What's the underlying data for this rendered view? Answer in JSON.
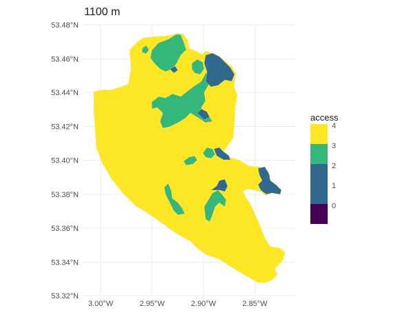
{
  "title": "1100 m",
  "colors": {
    "background": "#ffffff",
    "grid": "#ebebeb",
    "axis_text": "#4d4d4d",
    "title_text": "#1a1a1a",
    "boundary": "#f5e97a"
  },
  "axes": {
    "x_ticks": [
      "3.00°W",
      "2.95°W",
      "2.90°W",
      "2.85°W"
    ],
    "y_ticks": [
      "53.48°N",
      "53.46°N",
      "53.44°N",
      "53.42°N",
      "53.40°N",
      "53.38°N",
      "53.36°N",
      "53.34°N",
      "53.32°N"
    ]
  },
  "legend": {
    "title": "access",
    "placement": "right",
    "items": [
      {
        "label": "4",
        "color": "#fde725"
      },
      {
        "label": "3",
        "color": "#35b779"
      },
      {
        "label": "2",
        "color": "#31688e"
      },
      {
        "label": "1",
        "color": "#31688e"
      },
      {
        "label": "0",
        "color": "#440154"
      }
    ]
  },
  "chart_data": {
    "type": "choropleth",
    "variable": "access",
    "categories": [
      "0",
      "1",
      "2",
      "3",
      "4"
    ],
    "x_range_deg_w": [
      3.025,
      2.815
    ],
    "y_range_deg_n": [
      53.32,
      53.48
    ],
    "regions": [
      {
        "access": "4",
        "color": "#fde725",
        "note": "majority of the city area"
      },
      {
        "access": "3",
        "color": "#35b779",
        "location": "north-centre near 2.94°W 53.46°N"
      },
      {
        "access": "3",
        "color": "#35b779",
        "location": "centre near 2.93°W 53.425°N"
      },
      {
        "access": "3",
        "color": "#35b779",
        "location": "south-west near 2.93°W 53.375°N"
      },
      {
        "access": "3",
        "color": "#35b779",
        "location": "south-centre near 2.90°W 53.375°N"
      },
      {
        "access": "2",
        "color": "#31688e",
        "location": "north-east near 2.885°W 53.455°N"
      },
      {
        "access": "2",
        "color": "#31688e",
        "location": "east near 2.83°W 53.385°N"
      },
      {
        "access": "2",
        "color": "#31688e",
        "location": "east near 2.89°W 53.402°N"
      }
    ]
  }
}
